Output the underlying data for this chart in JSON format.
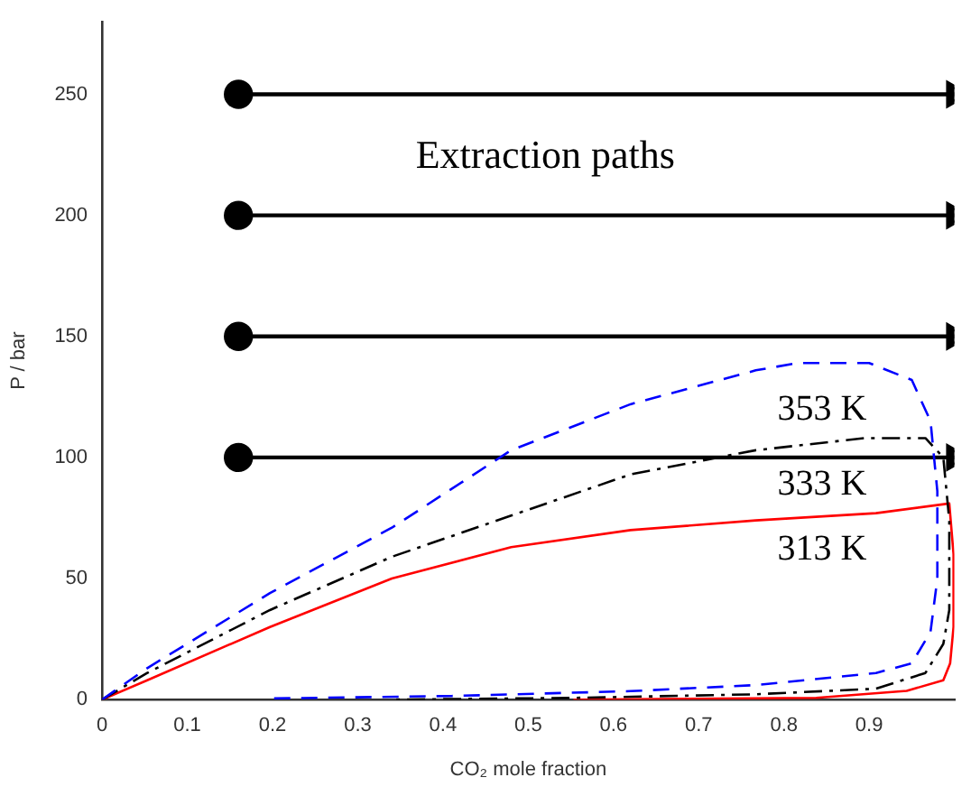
{
  "chart_data": {
    "type": "line",
    "xlabel": "CO₂ mole fraction",
    "ylabel": "P / bar",
    "xlim": [
      0,
      1
    ],
    "ylim": [
      0,
      280
    ],
    "xticks": [
      0,
      0.1,
      0.2,
      0.3,
      0.4,
      0.5,
      0.6,
      0.7,
      0.8,
      0.9
    ],
    "yticks": [
      0,
      50,
      100,
      150,
      200,
      250
    ],
    "annotations": [
      "Extraction paths"
    ],
    "series": [
      {
        "name": "353 K",
        "color": "#0000ff",
        "line_style": "dashed",
        "marker": "none",
        "x": [
          0,
          0.053,
          0.197,
          0.34,
          0.48,
          0.62,
          0.767,
          0.816,
          0.9,
          0.95,
          0.972,
          0.98,
          0.98,
          0.972,
          0.95,
          0.908,
          0.767,
          0.62,
          0.41,
          0.2
        ],
        "values": [
          0,
          13,
          44,
          71,
          103,
          122,
          136,
          139,
          139,
          132,
          115,
          86,
          50,
          28,
          15,
          11,
          6,
          3.5,
          1.5,
          0.5
        ]
      },
      {
        "name": "333 K",
        "color": "#000000",
        "line_style": "dashdot",
        "marker": "none",
        "x": [
          0,
          0.053,
          0.197,
          0.34,
          0.48,
          0.62,
          0.767,
          0.895,
          0.966,
          0.987,
          0.994,
          0.994,
          0.987,
          0.966,
          0.908,
          0.767,
          0.553,
          0.34
        ],
        "values": [
          0,
          11,
          37,
          59,
          76,
          93,
          103,
          108,
          108,
          100,
          74,
          37,
          23,
          11,
          4.5,
          2.2,
          0.7,
          0
        ]
      },
      {
        "name": "313 K",
        "color": "#ff0000",
        "line_style": "solid",
        "marker": "none",
        "x": [
          0,
          0.053,
          0.197,
          0.34,
          0.48,
          0.62,
          0.767,
          0.908,
          0.994,
          0.999,
          0.999,
          0.995,
          0.987,
          0.944,
          0.838,
          0.553
        ],
        "values": [
          0,
          8,
          30,
          50,
          63,
          70,
          74,
          77,
          81,
          60,
          30,
          15,
          8,
          3.6,
          0.7,
          0
        ]
      },
      {
        "color": "#000000",
        "line_style": "solid",
        "marker": "circle",
        "x": [
          0.16,
          1.0
        ],
        "values": [
          250,
          250
        ]
      },
      {
        "color": "#000000",
        "line_style": "solid",
        "marker": "circle",
        "x": [
          0.16,
          1.0
        ],
        "values": [
          200,
          200
        ]
      },
      {
        "color": "#000000",
        "line_style": "solid",
        "marker": "circle",
        "x": [
          0.16,
          1.0
        ],
        "values": [
          150,
          150
        ]
      },
      {
        "color": "#000000",
        "line_style": "solid",
        "marker": "circle",
        "x": [
          0.16,
          1.0
        ],
        "values": [
          100,
          100
        ]
      }
    ]
  }
}
